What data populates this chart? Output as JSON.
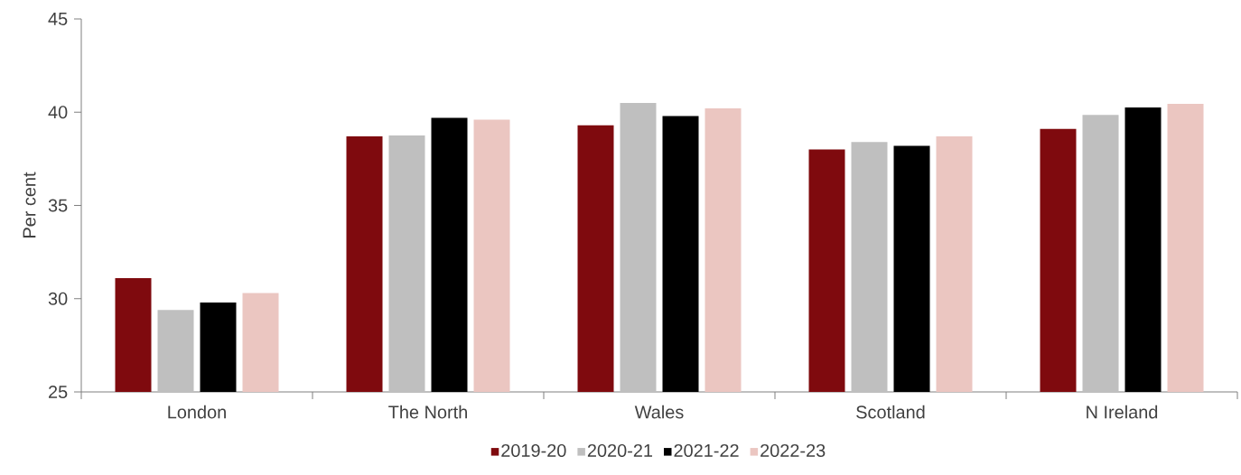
{
  "chart_data": {
    "type": "bar",
    "ylabel": "Per cent",
    "categories": [
      "London",
      "The North",
      "Wales",
      "Scotland",
      "N Ireland"
    ],
    "series": [
      {
        "name": "2019-20",
        "color": "#7f0a0e",
        "values": [
          31.1,
          38.7,
          39.3,
          38.0,
          39.1
        ]
      },
      {
        "name": "2020-21",
        "color": "#bfbfbf",
        "values": [
          29.4,
          38.75,
          40.5,
          38.4,
          39.85
        ]
      },
      {
        "name": "2021-22",
        "color": "#000000",
        "values": [
          29.8,
          39.7,
          39.8,
          38.2,
          40.25
        ]
      },
      {
        "name": "2022-23",
        "color": "#ebc6c1",
        "values": [
          30.3,
          39.6,
          40.2,
          38.7,
          40.45
        ]
      }
    ],
    "ylim": [
      25,
      45
    ],
    "yticks": [
      25,
      30,
      35,
      40,
      45
    ],
    "legend": "bottom"
  }
}
